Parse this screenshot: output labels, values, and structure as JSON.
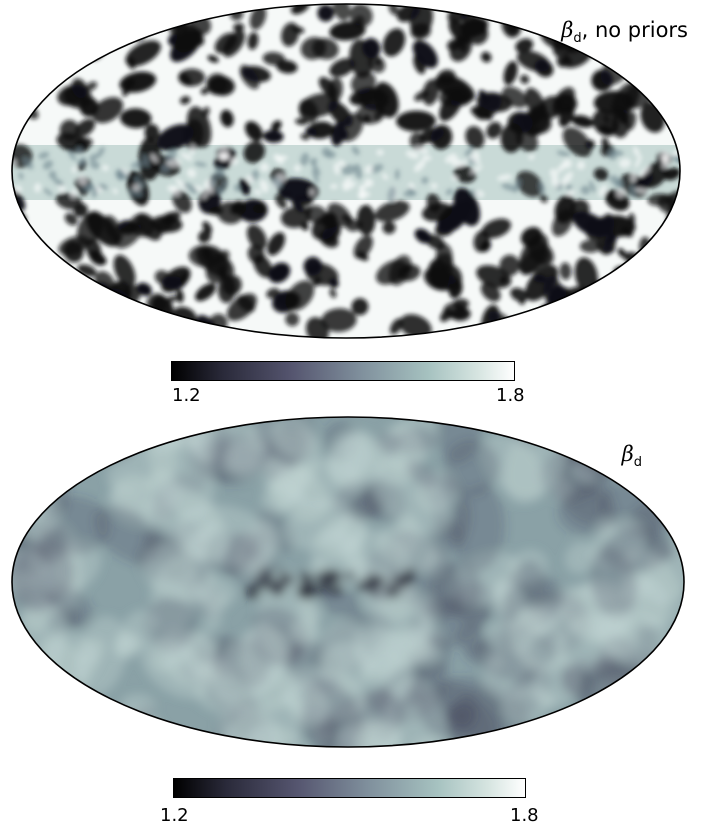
{
  "maps": [
    {
      "label_symbol": "β",
      "label_subscript": "d",
      "label_suffix": ", no priors",
      "colorbar": {
        "min": "1.2",
        "max": "1.8"
      }
    },
    {
      "label_symbol": "β",
      "label_subscript": "d",
      "label_suffix": "",
      "colorbar": {
        "min": "1.2",
        "max": "1.8"
      }
    }
  ],
  "colors": {
    "map_top_base": "#f6f9f8",
    "map_top_blobs": "#0b0b12",
    "map_bottom_base": "#8aa1a6",
    "map_bottom_dark": "#3b3b52",
    "map_bottom_light": "#c6dad7"
  }
}
